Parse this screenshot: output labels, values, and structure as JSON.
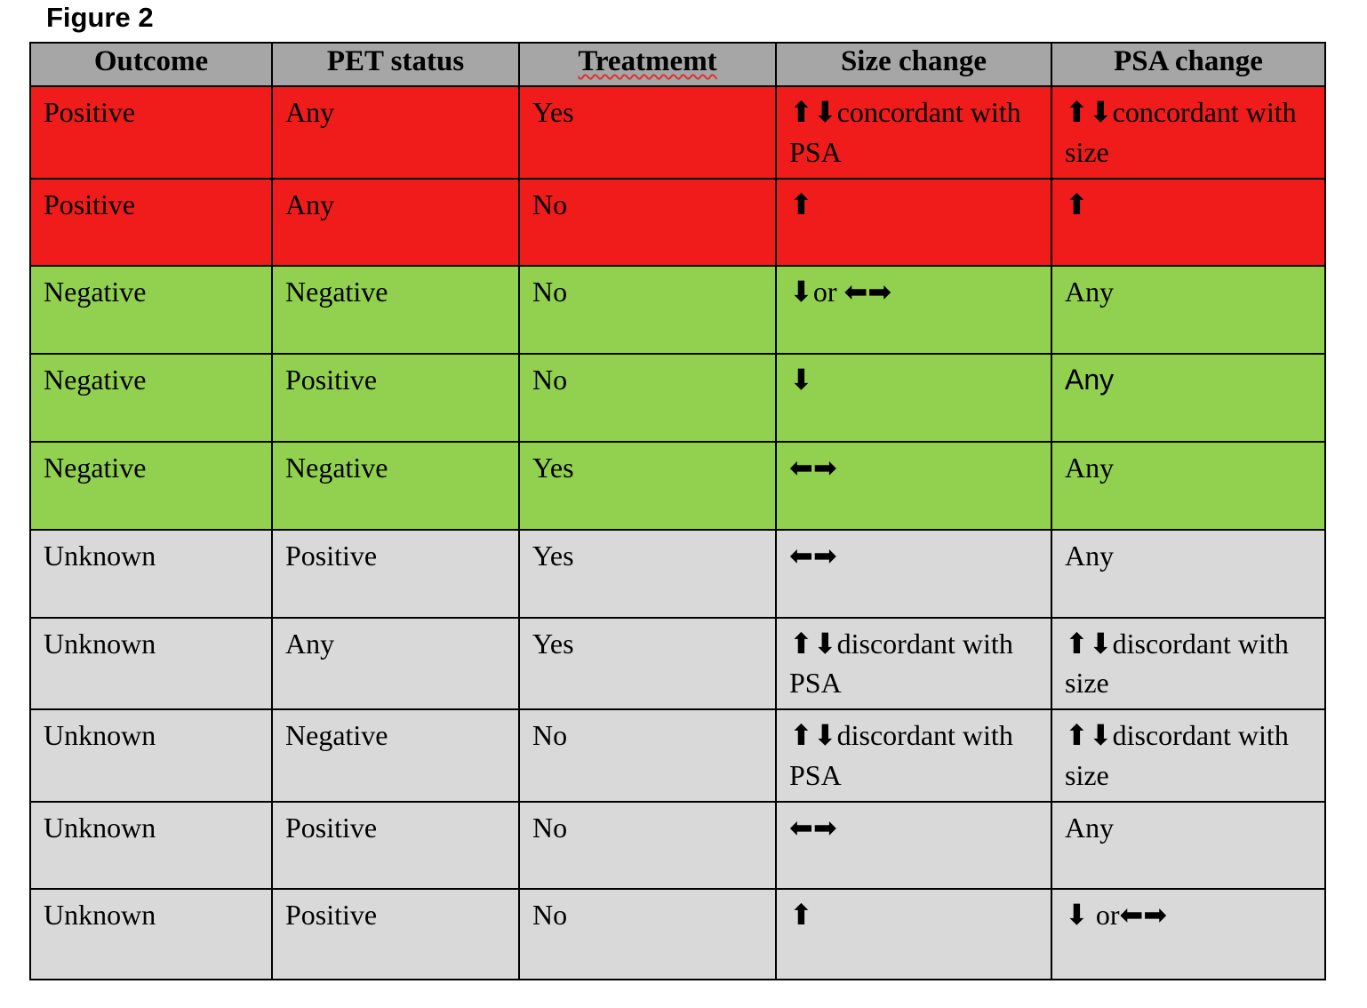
{
  "figure": {
    "title": "Figure 2"
  },
  "colors": {
    "row_red": "#f01c1c",
    "row_green": "#92d050",
    "row_gray": "#d9d9d9",
    "header_gray": "#a6a6a6",
    "border": "#000000",
    "spellcheck_underline": "#e03030"
  },
  "table": {
    "headers": [
      "Outcome",
      "PET status",
      "Treatmemt",
      "Size change",
      "PSA change"
    ],
    "rows": [
      {
        "category": "red",
        "cells": [
          "Positive",
          "Any",
          "Yes",
          "⬆⬇concordant with PSA",
          "⬆⬇concordant with size"
        ]
      },
      {
        "category": "red",
        "cells": [
          "Positive",
          "Any",
          "No",
          "⬆",
          "⬆"
        ]
      },
      {
        "category": "green",
        "cells": [
          "Negative",
          "Negative",
          "No",
          "⬇or ⬅➡",
          "Any"
        ]
      },
      {
        "category": "green",
        "cells": [
          "Negative",
          "Positive",
          "No",
          "⬇",
          "Any"
        ]
      },
      {
        "category": "green",
        "cells": [
          "Negative",
          "Negative",
          "Yes",
          "⬅➡",
          "Any"
        ]
      },
      {
        "category": "gray",
        "cells": [
          "Unknown",
          "Positive",
          "Yes",
          "⬅➡",
          "Any"
        ]
      },
      {
        "category": "gray",
        "cells": [
          "Unknown",
          "Any",
          "Yes",
          "⬆⬇discordant with PSA",
          "⬆⬇discordant with size"
        ]
      },
      {
        "category": "gray",
        "cells": [
          "Unknown",
          "Negative",
          "No",
          "⬆⬇discordant with PSA",
          "⬆⬇discordant with size"
        ]
      },
      {
        "category": "gray",
        "cells": [
          "Unknown",
          "Positive",
          "No",
          "⬅➡",
          "Any"
        ]
      },
      {
        "category": "gray",
        "cells": [
          "Unknown",
          "Positive",
          "No",
          "⬆",
          "⬇ or⬅➡"
        ]
      }
    ]
  }
}
